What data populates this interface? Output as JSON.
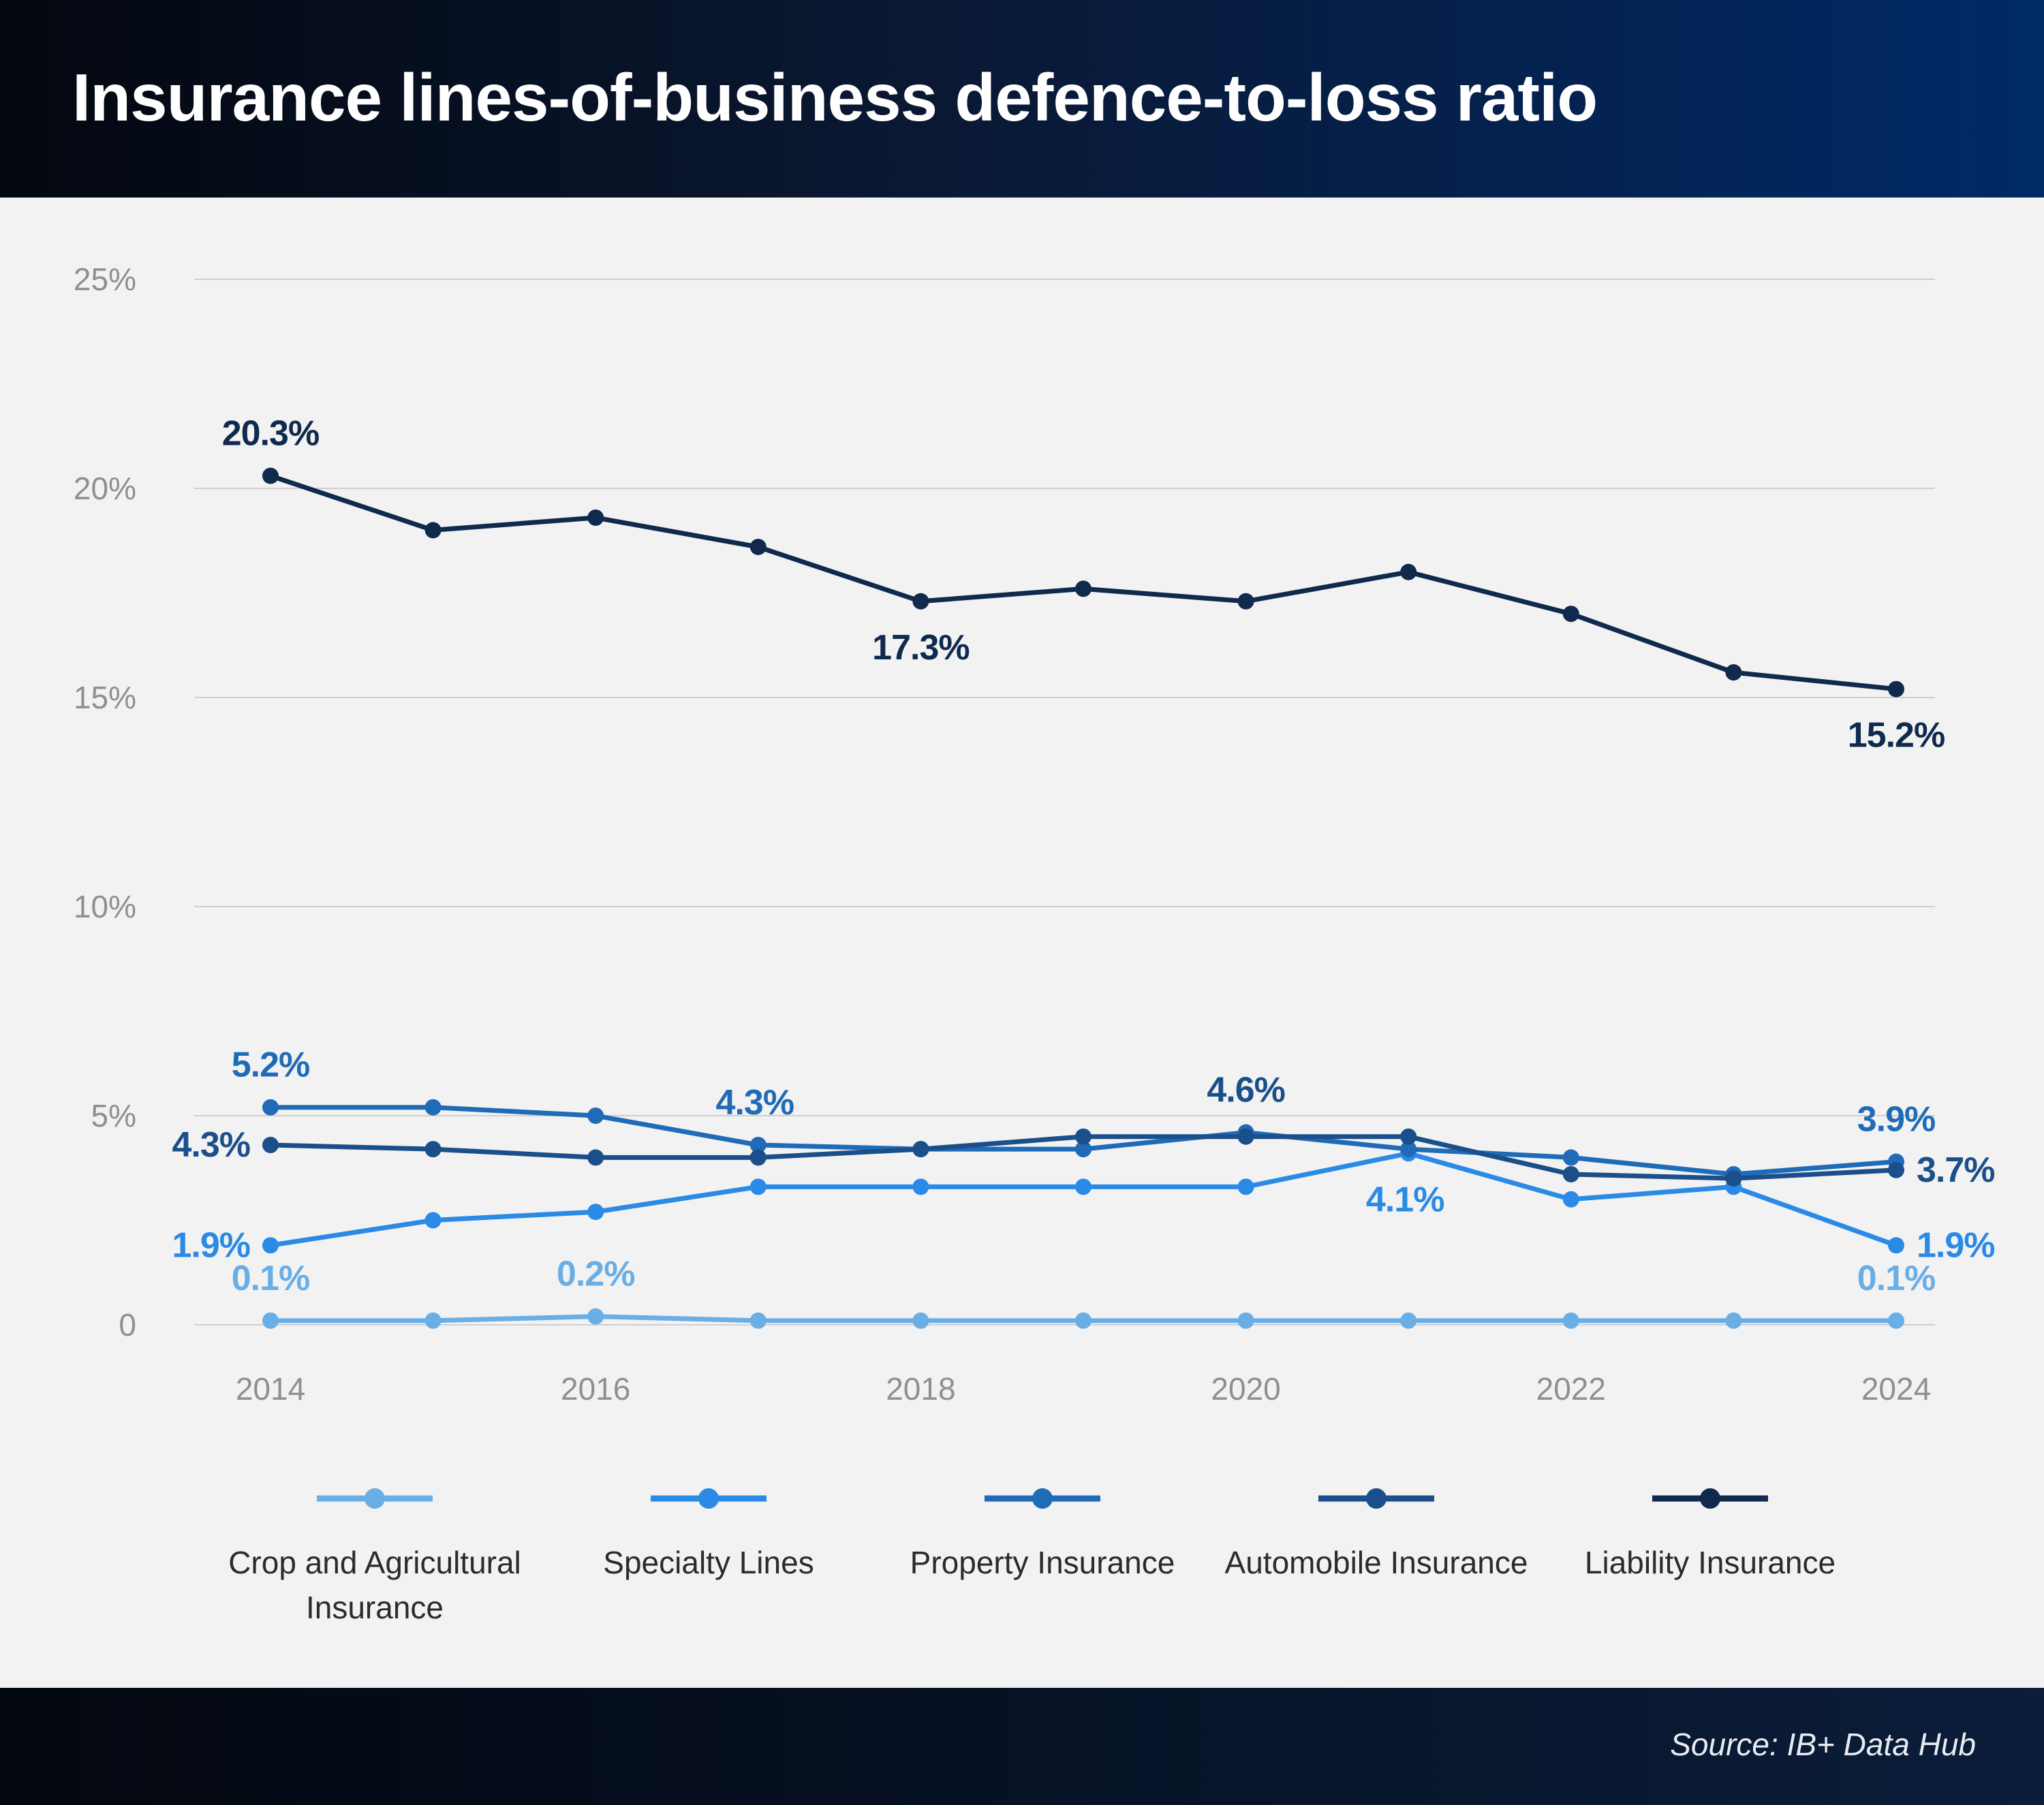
{
  "title": "Insurance lines-of-business defence-to-loss ratio",
  "source": "Source: IB+ Data Hub",
  "chart_data": {
    "type": "line",
    "title": "Insurance lines-of-business defence-to-loss ratio",
    "xlabel": "",
    "ylabel": "",
    "x": [
      2014,
      2015,
      2016,
      2017,
      2018,
      2019,
      2020,
      2021,
      2022,
      2023,
      2024
    ],
    "x_tick_labels": [
      "2014",
      "2016",
      "2018",
      "2020",
      "2022",
      "2024"
    ],
    "x_tick_values": [
      2014,
      2016,
      2018,
      2020,
      2022,
      2024
    ],
    "y_tick_labels": [
      "0",
      "5%",
      "10%",
      "15%",
      "20%",
      "25%"
    ],
    "y_tick_values": [
      0,
      5,
      10,
      15,
      20,
      25
    ],
    "xlim": [
      2013.5,
      2024.5
    ],
    "ylim": [
      0,
      25
    ],
    "grid": "horizontal",
    "legend_position": "bottom",
    "series": [
      {
        "name": "Crop and Agricultural Insurance",
        "color": "#6aaee6",
        "values": [
          0.1,
          0.1,
          0.2,
          0.1,
          0.1,
          0.1,
          0.1,
          0.1,
          0.1,
          0.1,
          0.1
        ],
        "labels": [
          {
            "x": 2014,
            "y": 0.1,
            "text": "0.1%",
            "pos": "above"
          },
          {
            "x": 2016,
            "y": 0.2,
            "text": "0.2%",
            "pos": "above"
          },
          {
            "x": 2024,
            "y": 0.1,
            "text": "0.1%",
            "pos": "above"
          }
        ]
      },
      {
        "name": "Specialty Lines",
        "color": "#2a8ae6",
        "values": [
          1.9,
          2.5,
          2.7,
          3.3,
          3.3,
          3.3,
          3.3,
          4.1,
          3.0,
          3.3,
          1.9
        ],
        "labels": [
          {
            "x": 2014,
            "y": 1.9,
            "text": "1.9%",
            "pos": "left"
          },
          {
            "x": 2021,
            "y": 4.1,
            "text": "4.1%",
            "pos": "below-left"
          },
          {
            "x": 2024,
            "y": 1.9,
            "text": "1.9%",
            "pos": "right"
          }
        ]
      },
      {
        "name": "Property Insurance",
        "color": "#1f6bb8",
        "values": [
          5.2,
          5.2,
          5.0,
          4.3,
          4.2,
          4.2,
          4.6,
          4.2,
          4.0,
          3.6,
          3.9
        ],
        "labels": [
          {
            "x": 2014,
            "y": 5.2,
            "text": "5.2%",
            "pos": "above"
          },
          {
            "x": 2017,
            "y": 4.3,
            "text": "4.3%",
            "pos": "above-left"
          },
          {
            "x": 2024,
            "y": 3.9,
            "text": "3.9%",
            "pos": "above"
          }
        ]
      },
      {
        "name": "Automobile Insurance",
        "color": "#1b4f8a",
        "values": [
          4.3,
          4.2,
          4.0,
          4.0,
          4.2,
          4.5,
          4.5,
          4.5,
          3.6,
          3.5,
          3.7
        ],
        "labels": [
          {
            "x": 2014,
            "y": 4.3,
            "text": "4.3%",
            "pos": "left"
          },
          {
            "x": 2024,
            "y": 3.7,
            "text": "3.7%",
            "pos": "right"
          }
        ]
      },
      {
        "name": "Liability Insurance",
        "color": "#0f2a4d",
        "values": [
          20.3,
          19.0,
          19.3,
          18.6,
          17.3,
          17.6,
          17.3,
          18.0,
          17.0,
          15.6,
          15.2
        ],
        "labels": [
          {
            "x": 2014,
            "y": 20.3,
            "text": "20.3%",
            "pos": "above"
          },
          {
            "x": 2018,
            "y": 17.3,
            "text": "17.3%",
            "pos": "below"
          },
          {
            "x": 2024,
            "y": 15.2,
            "text": "15.2%",
            "pos": "below"
          }
        ]
      }
    ],
    "extra_labels": [
      {
        "x": 2020,
        "y": 4.6,
        "text": "4.6%",
        "pos": "above",
        "color": "#1b4f8a"
      }
    ]
  }
}
